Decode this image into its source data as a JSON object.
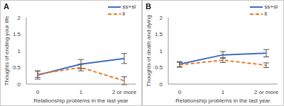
{
  "chart_data": [
    {
      "type": "line",
      "panel": "A",
      "categories": [
        "0",
        "1",
        "2 or more"
      ],
      "series": [
        {
          "name": "ss+sl",
          "color": "#4472c4",
          "line_style": "solid",
          "values": [
            0.27,
            0.6,
            0.77
          ],
          "errors": [
            0.12,
            0.14,
            0.15
          ]
        },
        {
          "name": "ll",
          "color": "#ed7d31",
          "line_style": "dashed",
          "values": [
            0.3,
            0.5,
            0.1
          ],
          "errors": [
            0.1,
            0.1,
            0.12
          ]
        }
      ],
      "x_label": "Relationship problems in the last year",
      "y_label": "Thoughts of ending your life",
      "ylim": [
        0,
        2
      ],
      "yticks": [
        0,
        0.5,
        1,
        1.5,
        2
      ],
      "grid": false,
      "legend": "upper right"
    },
    {
      "type": "line",
      "panel": "B",
      "categories": [
        "0",
        "1",
        "2 or more"
      ],
      "series": [
        {
          "name": "ss+sl",
          "color": "#4472c4",
          "line_style": "solid",
          "values": [
            0.6,
            0.88,
            0.93
          ],
          "errors": [
            0.08,
            0.1,
            0.11
          ]
        },
        {
          "name": "ll",
          "color": "#ed7d31",
          "line_style": "dashed",
          "values": [
            0.58,
            0.72,
            0.57
          ],
          "errors": [
            0.07,
            0.07,
            0.07
          ]
        }
      ],
      "x_label": "Relationship problems in the last year",
      "y_label": "Thoughts of death and dying",
      "ylim": [
        0,
        2
      ],
      "yticks": [
        0,
        0.5,
        1,
        1.5,
        2
      ],
      "grid": false,
      "legend": "upper right"
    }
  ]
}
